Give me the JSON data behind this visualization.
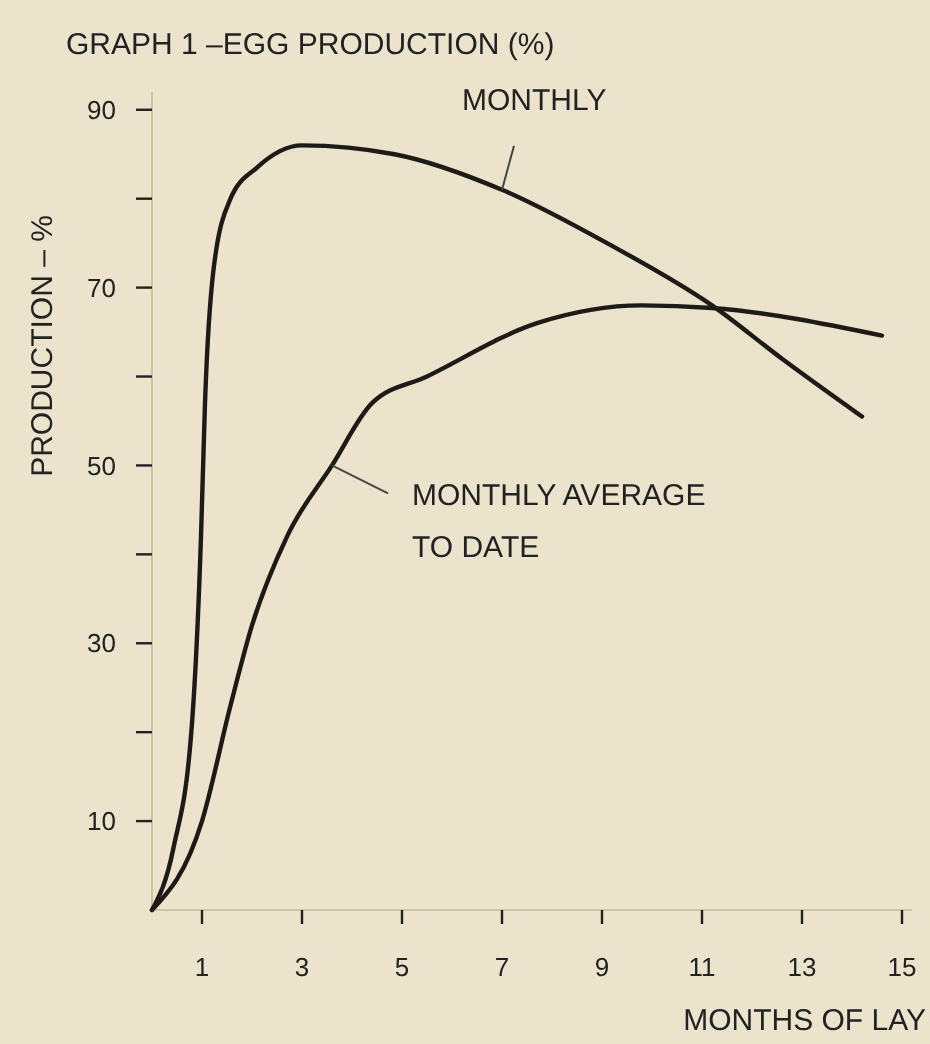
{
  "chart_data": {
    "type": "line",
    "title": "GRAPH 1 –EGG PRODUCTION (%)",
    "xlabel": "MONTHS OF LAY",
    "ylabel": "PRODUCTION – %",
    "xlim": [
      0,
      15.2
    ],
    "xticks": [
      1,
      3,
      5,
      7,
      9,
      11,
      13,
      15
    ],
    "ylim": [
      0,
      92
    ],
    "yticks": [
      {
        "value": 10,
        "label": "10"
      },
      {
        "value": 20,
        "label": null
      },
      {
        "value": 30,
        "label": "30"
      },
      {
        "value": 40,
        "label": null
      },
      {
        "value": 50,
        "label": "50"
      },
      {
        "value": 60,
        "label": null
      },
      {
        "value": 70,
        "label": "70"
      },
      {
        "value": 80,
        "label": null
      },
      {
        "value": 90,
        "label": "90"
      }
    ],
    "grid": false,
    "legend": false,
    "marker": "none",
    "line_style": "solid",
    "series": [
      {
        "name": "MONTHLY",
        "color": "#1e1a16",
        "x": [
          0,
          0.43,
          0.8,
          0.98,
          1.06,
          1.23,
          1.57,
          2.1,
          3,
          4.85,
          7,
          9.1,
          11.2,
          12.6,
          14.2
        ],
        "values": [
          0,
          7,
          21,
          42,
          57,
          72,
          80,
          83.5,
          86,
          85,
          81,
          75,
          68,
          62,
          55.5
        ]
      },
      {
        "name": "MONTHLY AVERAGE TO DATE",
        "color": "#1e1a16",
        "x": [
          0,
          1,
          1.57,
          2,
          2.7,
          3.6,
          4.4,
          5.5,
          7.7,
          9.8,
          11.2,
          14.6
        ],
        "values": [
          0,
          10,
          23,
          32,
          42,
          50,
          57,
          60,
          66,
          68,
          67.7,
          64.6
        ]
      }
    ]
  }
}
